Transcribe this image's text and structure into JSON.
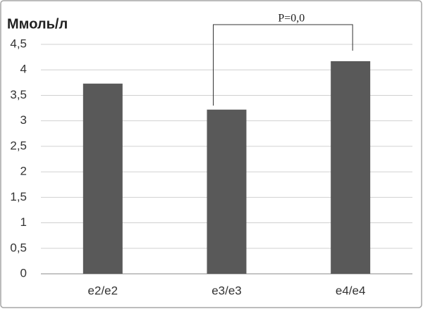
{
  "chart_data": {
    "type": "bar",
    "title": "Ммоль/л",
    "categories": [
      "e2/e2",
      "e3/e3",
      "e4/e4"
    ],
    "values": [
      3.73,
      3.22,
      4.17
    ],
    "color": "#595959",
    "ylim": [
      0,
      4.5
    ],
    "yticks": [
      0,
      {
        "value": 0.5,
        "label": "0,5"
      },
      1,
      {
        "value": 1.5,
        "label": "1,5"
      },
      2,
      {
        "value": 2.5,
        "label": "2,5"
      },
      3,
      {
        "value": 3.5,
        "label": "3,5"
      },
      4,
      {
        "value": 4.5,
        "label": "4,5"
      }
    ],
    "grid": true,
    "annotation": "P=0,0"
  }
}
